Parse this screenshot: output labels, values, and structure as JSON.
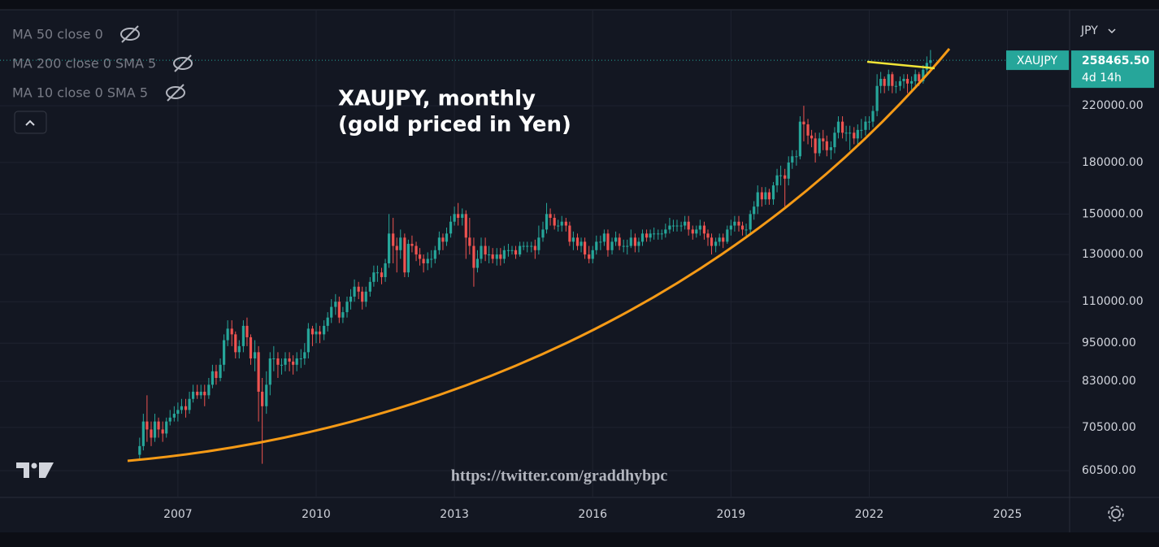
{
  "chart_data": {
    "type": "candlestick",
    "symbol": "XAUJPY",
    "currency": "JPY",
    "countdown": "4d 14h",
    "indicators": [
      "MA 50 close 0",
      "MA 200 close 0 SMA 5",
      "MA 10 close 0 SMA 5"
    ],
    "annotation": [
      "XAUJPY, monthly",
      "(gold priced in Yen)"
    ],
    "watermark": "https://twitter.com/graddhybpc",
    "last_price": {
      "value": 258465.5,
      "label": "258465.50"
    },
    "up_color": "#26a69a",
    "down_color": "#ef5350",
    "log_scale": true,
    "grid": true,
    "xlim": [
      2003.14,
      2026.33
    ],
    "xticks": [
      2007,
      2010,
      2013,
      2016,
      2019,
      2022,
      2025
    ],
    "ylim": [
      55200,
      309000
    ],
    "yticks": [
      {
        "value": 60500,
        "label": "60500.00"
      },
      {
        "value": 70500,
        "label": "70500.00"
      },
      {
        "value": 83000,
        "label": "83000.00"
      },
      {
        "value": 95000,
        "label": "95000.00"
      },
      {
        "value": 110000,
        "label": "110000.00"
      },
      {
        "value": 130000,
        "label": "130000.00"
      },
      {
        "value": 150000,
        "label": "150000.00"
      },
      {
        "value": 180000,
        "label": "180000.00"
      },
      {
        "value": 220000,
        "label": "220000.00"
      }
    ],
    "x": [
      2006.17,
      2006.25,
      2006.33,
      2006.42,
      2006.5,
      2006.58,
      2006.67,
      2006.75,
      2006.83,
      2006.92,
      2007,
      2007.08,
      2007.17,
      2007.25,
      2007.33,
      2007.42,
      2007.5,
      2007.58,
      2007.67,
      2007.75,
      2007.83,
      2007.92,
      2008,
      2008.08,
      2008.17,
      2008.25,
      2008.33,
      2008.42,
      2008.5,
      2008.58,
      2008.67,
      2008.75,
      2008.83,
      2008.92,
      2009,
      2009.08,
      2009.17,
      2009.25,
      2009.33,
      2009.42,
      2009.5,
      2009.58,
      2009.67,
      2009.75,
      2009.83,
      2009.92,
      2010,
      2010.08,
      2010.17,
      2010.25,
      2010.33,
      2010.42,
      2010.5,
      2010.58,
      2010.67,
      2010.75,
      2010.83,
      2010.92,
      2011,
      2011.08,
      2011.17,
      2011.25,
      2011.33,
      2011.42,
      2011.5,
      2011.58,
      2011.67,
      2011.75,
      2011.83,
      2011.92,
      2012,
      2012.08,
      2012.17,
      2012.25,
      2012.33,
      2012.42,
      2012.5,
      2012.58,
      2012.67,
      2012.75,
      2012.83,
      2012.92,
      2013,
      2013.08,
      2013.17,
      2013.25,
      2013.33,
      2013.42,
      2013.5,
      2013.58,
      2013.67,
      2013.75,
      2013.83,
      2013.92,
      2014,
      2014.08,
      2014.17,
      2014.25,
      2014.33,
      2014.42,
      2014.5,
      2014.58,
      2014.67,
      2014.75,
      2014.83,
      2014.92,
      2015,
      2015.08,
      2015.17,
      2015.25,
      2015.33,
      2015.42,
      2015.5,
      2015.58,
      2015.67,
      2015.75,
      2015.83,
      2015.92,
      2016,
      2016.08,
      2016.17,
      2016.25,
      2016.33,
      2016.42,
      2016.5,
      2016.58,
      2016.67,
      2016.75,
      2016.83,
      2016.92,
      2017,
      2017.08,
      2017.17,
      2017.25,
      2017.33,
      2017.42,
      2017.5,
      2017.58,
      2017.67,
      2017.75,
      2017.83,
      2017.92,
      2018,
      2018.08,
      2018.17,
      2018.25,
      2018.33,
      2018.42,
      2018.5,
      2018.58,
      2018.67,
      2018.75,
      2018.83,
      2018.92,
      2019,
      2019.08,
      2019.17,
      2019.25,
      2019.33,
      2019.42,
      2019.5,
      2019.58,
      2019.67,
      2019.75,
      2019.83,
      2019.92,
      2020,
      2020.08,
      2020.17,
      2020.25,
      2020.33,
      2020.42,
      2020.5,
      2020.58,
      2020.67,
      2020.75,
      2020.83,
      2020.92,
      2021,
      2021.08,
      2021.17,
      2021.25,
      2021.33,
      2021.42,
      2021.5,
      2021.58,
      2021.67,
      2021.75,
      2021.83,
      2021.92,
      2022,
      2022.08,
      2022.17,
      2022.25,
      2022.33,
      2022.42,
      2022.5,
      2022.58,
      2022.67,
      2022.75,
      2022.83,
      2022.92,
      2023,
      2023.08,
      2023.17,
      2023.25,
      2023.33
    ],
    "open": [
      64000,
      66000,
      72000,
      70000,
      68000,
      72000,
      70000,
      69000,
      72000,
      73000,
      74000,
      75000,
      76000,
      75000,
      78000,
      80000,
      79000,
      80000,
      79000,
      82000,
      86000,
      84000,
      88000,
      96000,
      100000,
      98000,
      92000,
      94000,
      101000,
      97000,
      90000,
      92000,
      80000,
      76000,
      82000,
      90000,
      90000,
      88000,
      88000,
      90000,
      89000,
      88000,
      90000,
      90000,
      92000,
      100000,
      98000,
      99000,
      98000,
      101000,
      104000,
      108000,
      110000,
      104000,
      106000,
      110000,
      112000,
      116000,
      114000,
      110000,
      114000,
      118000,
      122000,
      122000,
      120000,
      126000,
      140000,
      134000,
      132000,
      138000,
      122000,
      135000,
      134000,
      130000,
      128000,
      126000,
      128000,
      128000,
      132000,
      138000,
      136000,
      140000,
      146000,
      150000,
      148000,
      150000,
      138000,
      134000,
      124000,
      128000,
      134000,
      130000,
      130000,
      128000,
      130000,
      128000,
      132000,
      132000,
      132000,
      130000,
      134000,
      134000,
      134000,
      134000,
      132000,
      138000,
      142000,
      150000,
      148000,
      144000,
      144000,
      146000,
      144000,
      136000,
      138000,
      134000,
      136000,
      130000,
      128000,
      132000,
      136000,
      136000,
      140000,
      132000,
      136000,
      138000,
      134000,
      134000,
      134000,
      138000,
      134000,
      136000,
      140000,
      138000,
      140000,
      140000,
      140000,
      140000,
      142000,
      144000,
      144000,
      144000,
      144000,
      146000,
      142000,
      140000,
      142000,
      144000,
      140000,
      138000,
      134000,
      136000,
      138000,
      136000,
      142000,
      144000,
      146000,
      144000,
      142000,
      142000,
      150000,
      154000,
      162000,
      158000,
      162000,
      158000,
      166000,
      172000,
      172000,
      170000,
      180000,
      184000,
      184000,
      208000,
      206000,
      198000,
      196000,
      186000,
      196000,
      194000,
      188000,
      190000,
      200000,
      208000,
      200000,
      200000,
      200000,
      196000,
      202000,
      202000,
      208000,
      208000,
      216000,
      236000,
      242000,
      236000,
      246000,
      236000,
      236000,
      240000,
      242000,
      238000,
      240000,
      246000,
      240000,
      250000,
      256000
    ],
    "high": [
      68000,
      74000,
      79000,
      72000,
      74000,
      73000,
      72000,
      73000,
      75000,
      76000,
      77000,
      78000,
      78000,
      80000,
      82000,
      82000,
      82000,
      82000,
      84000,
      88000,
      88000,
      90000,
      98000,
      103000,
      103000,
      99000,
      96000,
      103000,
      104000,
      98000,
      96000,
      94000,
      84000,
      86000,
      92000,
      94000,
      92000,
      90000,
      92000,
      92000,
      91000,
      92000,
      93000,
      95000,
      102000,
      101000,
      102000,
      101000,
      103000,
      106000,
      111000,
      113000,
      112000,
      108000,
      112000,
      115000,
      119000,
      118000,
      116000,
      116000,
      120000,
      125000,
      125000,
      124000,
      128000,
      150000,
      148000,
      138000,
      142000,
      140000,
      137000,
      139000,
      136000,
      133000,
      130000,
      131000,
      132000,
      134000,
      141000,
      140000,
      143000,
      149000,
      154000,
      156000,
      153000,
      152000,
      148000,
      138000,
      132000,
      138000,
      138000,
      134000,
      133000,
      133000,
      133000,
      134000,
      135000,
      134000,
      134000,
      136000,
      136000,
      136000,
      136000,
      137000,
      144000,
      146000,
      156000,
      153000,
      150000,
      147000,
      149000,
      148000,
      146000,
      141000,
      140000,
      138000,
      138000,
      134000,
      134000,
      139000,
      139000,
      142000,
      142000,
      138000,
      141000,
      140000,
      137000,
      137000,
      142000,
      140000,
      138000,
      142000,
      142000,
      142000,
      143000,
      142000,
      142000,
      145000,
      148000,
      147000,
      147000,
      146000,
      149000,
      149000,
      144000,
      144000,
      147000,
      146000,
      142000,
      140000,
      138000,
      140000,
      140000,
      144000,
      147000,
      149000,
      149000,
      146000,
      145000,
      152000,
      157000,
      166000,
      165000,
      165000,
      164000,
      168000,
      176000,
      178000,
      176000,
      184000,
      188000,
      188000,
      212000,
      220000,
      210000,
      202000,
      200000,
      200000,
      202000,
      198000,
      194000,
      204000,
      212000,
      212000,
      205000,
      205000,
      204000,
      206000,
      210000,
      212000,
      212000,
      220000,
      246000,
      248000,
      244000,
      250000,
      248000,
      240000,
      244000,
      246000,
      246000,
      244000,
      250000,
      248000,
      254000,
      262000,
      268000
    ],
    "low": [
      63000,
      65000,
      67000,
      66000,
      67000,
      68000,
      67000,
      68000,
      71000,
      72000,
      72000,
      74000,
      73000,
      74000,
      77000,
      78000,
      78000,
      76000,
      78000,
      81000,
      82000,
      83000,
      86000,
      94000,
      94000,
      90000,
      90000,
      92000,
      94000,
      88000,
      86000,
      72000,
      62000,
      74000,
      79000,
      86000,
      84000,
      85000,
      86000,
      86000,
      85000,
      86000,
      87000,
      88000,
      90000,
      94000,
      95000,
      95000,
      96000,
      99000,
      102000,
      105000,
      102000,
      102000,
      104000,
      107000,
      110000,
      111000,
      107000,
      108000,
      112000,
      116000,
      118000,
      117000,
      118000,
      124000,
      126000,
      122000,
      128000,
      120000,
      120000,
      131000,
      127000,
      125000,
      122000,
      123000,
      124000,
      126000,
      130000,
      132000,
      134000,
      138000,
      144000,
      144000,
      144000,
      128000,
      130000,
      116000,
      122000,
      126000,
      127000,
      126000,
      126000,
      125000,
      125000,
      126000,
      129000,
      130000,
      128000,
      129000,
      132000,
      131000,
      131000,
      128000,
      130000,
      136000,
      140000,
      144000,
      142000,
      141000,
      141000,
      141000,
      134000,
      132000,
      132000,
      131000,
      128000,
      126000,
      126000,
      130000,
      132000,
      134000,
      129000,
      130000,
      134000,
      132000,
      131000,
      130000,
      133000,
      131000,
      131000,
      134000,
      136000,
      136000,
      137000,
      137000,
      137000,
      138000,
      140000,
      141000,
      141000,
      141000,
      142000,
      139000,
      137000,
      138000,
      139000,
      137000,
      134000,
      130000,
      131000,
      134000,
      133000,
      135000,
      139000,
      141000,
      141000,
      139000,
      139000,
      140000,
      147000,
      150000,
      154000,
      155000,
      155000,
      155000,
      162000,
      166000,
      154000,
      166000,
      176000,
      178000,
      182000,
      194000,
      192000,
      190000,
      180000,
      184000,
      188000,
      184000,
      182000,
      186000,
      196000,
      196000,
      194000,
      188000,
      192000,
      192000,
      196000,
      198000,
      202000,
      204000,
      212000,
      230000,
      230000,
      232000,
      230000,
      230000,
      232000,
      234000,
      230000,
      232000,
      236000,
      236000,
      238000,
      246000,
      252000
    ],
    "close": [
      66000,
      72000,
      70000,
      68000,
      72000,
      70000,
      69000,
      72000,
      73000,
      74000,
      75000,
      76000,
      75000,
      78000,
      80000,
      79000,
      80000,
      79000,
      82000,
      86000,
      84000,
      88000,
      96000,
      100000,
      98000,
      92000,
      94000,
      101000,
      97000,
      90000,
      92000,
      80000,
      76000,
      82000,
      90000,
      90000,
      88000,
      88000,
      90000,
      89000,
      88000,
      90000,
      90000,
      92000,
      100000,
      98000,
      99000,
      98000,
      101000,
      104000,
      108000,
      110000,
      104000,
      106000,
      110000,
      112000,
      116000,
      114000,
      110000,
      114000,
      118000,
      122000,
      122000,
      120000,
      126000,
      140000,
      134000,
      132000,
      138000,
      122000,
      135000,
      134000,
      130000,
      128000,
      126000,
      128000,
      128000,
      132000,
      138000,
      136000,
      140000,
      146000,
      150000,
      148000,
      150000,
      138000,
      134000,
      124000,
      128000,
      134000,
      130000,
      130000,
      128000,
      130000,
      128000,
      132000,
      132000,
      132000,
      130000,
      134000,
      134000,
      134000,
      134000,
      132000,
      138000,
      142000,
      150000,
      148000,
      144000,
      144000,
      146000,
      144000,
      136000,
      138000,
      134000,
      136000,
      130000,
      128000,
      132000,
      136000,
      136000,
      140000,
      132000,
      136000,
      138000,
      134000,
      134000,
      134000,
      138000,
      134000,
      136000,
      140000,
      138000,
      140000,
      140000,
      140000,
      140000,
      142000,
      144000,
      144000,
      144000,
      144000,
      146000,
      142000,
      140000,
      142000,
      144000,
      140000,
      138000,
      134000,
      136000,
      138000,
      136000,
      142000,
      144000,
      146000,
      144000,
      142000,
      142000,
      150000,
      154000,
      162000,
      158000,
      162000,
      158000,
      166000,
      172000,
      172000,
      170000,
      180000,
      184000,
      184000,
      208000,
      206000,
      198000,
      196000,
      186000,
      196000,
      194000,
      188000,
      190000,
      200000,
      208000,
      200000,
      200000,
      200000,
      196000,
      202000,
      202000,
      208000,
      208000,
      216000,
      236000,
      242000,
      236000,
      246000,
      236000,
      236000,
      240000,
      242000,
      238000,
      240000,
      246000,
      240000,
      250000,
      256000,
      258465.5
    ]
  }
}
